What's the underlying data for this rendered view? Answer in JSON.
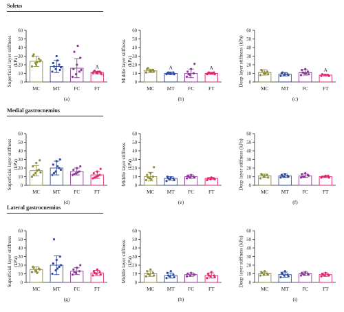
{
  "colors": {
    "MC": "#8f8c3a",
    "MT": "#2f4aa0",
    "FC": "#8b3a97",
    "FT": "#e0246e",
    "axis": "#222222"
  },
  "sections": [
    {
      "title": "Soleus"
    },
    {
      "title": "Medial gastrocnemius"
    },
    {
      "title": "Lateral gastrocnemius"
    }
  ],
  "chart_data": [
    {
      "type": "bar",
      "panel": "(a)",
      "ylabel": "Superficial layer stiffness (kPa)",
      "categories": [
        "MC",
        "MT",
        "FC",
        "FT"
      ],
      "values": [
        24,
        18,
        16,
        11
      ],
      "errors": [
        6,
        7,
        11,
        1.5
      ],
      "ylim": [
        0,
        60
      ],
      "yticks": [
        0,
        10,
        20,
        30,
        40,
        50,
        60
      ],
      "annotations": [
        {
          "category": "FT",
          "text": "A"
        }
      ],
      "points": [
        [
          18,
          22,
          27,
          30,
          20,
          24,
          32,
          23,
          25
        ],
        [
          12,
          15,
          20,
          22,
          30,
          14,
          18,
          25,
          17
        ],
        [
          6,
          9,
          12,
          15,
          20,
          28,
          35,
          42,
          14
        ],
        [
          10,
          11,
          12,
          12,
          10,
          11,
          13,
          12,
          9
        ]
      ]
    },
    {
      "type": "bar",
      "panel": "(b)",
      "ylabel": "Middle layer stiffness (kPa)",
      "categories": [
        "MC",
        "MT",
        "FC",
        "FT"
      ],
      "values": [
        13,
        10,
        10,
        10
      ],
      "errors": [
        2,
        1.5,
        5,
        1.2
      ],
      "ylim": [
        0,
        60
      ],
      "yticks": [
        0,
        10,
        20,
        30,
        40,
        50,
        60
      ],
      "annotations": [
        {
          "category": "MT",
          "text": "A"
        },
        {
          "category": "FT",
          "text": "A"
        }
      ],
      "points": [
        [
          11,
          13,
          14,
          15,
          12,
          12,
          16,
          13
        ],
        [
          9,
          10,
          11,
          10,
          10,
          9,
          11
        ],
        [
          6,
          8,
          10,
          12,
          15,
          21,
          9
        ],
        [
          9,
          10,
          11,
          10,
          10,
          9,
          11,
          10
        ]
      ]
    },
    {
      "type": "bar",
      "panel": "(c)",
      "ylabel": "Deep layer stiffness (kPa)",
      "categories": [
        "MC",
        "MT",
        "FC",
        "FT"
      ],
      "values": [
        11,
        9,
        11,
        8
      ],
      "errors": [
        3,
        2,
        3,
        1
      ],
      "ylim": [
        0,
        60
      ],
      "yticks": [
        0,
        10,
        20,
        30,
        40,
        50,
        60
      ],
      "annotations": [
        {
          "category": "FT",
          "text": "A"
        }
      ],
      "points": [
        [
          8,
          10,
          12,
          14,
          11,
          9,
          13,
          10
        ],
        [
          7,
          8,
          9,
          10,
          9,
          8,
          11
        ],
        [
          8,
          10,
          12,
          14,
          15,
          9,
          11,
          10
        ],
        [
          7,
          8,
          8,
          9,
          8,
          7
        ]
      ]
    },
    {
      "type": "bar",
      "panel": "(d)",
      "ylabel": "Superficial layer stiffness (kPa)",
      "categories": [
        "MC",
        "MT",
        "FC",
        "FT"
      ],
      "values": [
        17,
        20,
        16,
        12
      ],
      "errors": [
        6,
        8,
        4,
        4
      ],
      "ylim": [
        0,
        60
      ],
      "yticks": [
        0,
        10,
        20,
        30,
        40,
        50,
        60
      ],
      "annotations": [],
      "points": [
        [
          10,
          14,
          18,
          22,
          26,
          29,
          12,
          17,
          15
        ],
        [
          12,
          16,
          20,
          24,
          28,
          30,
          14,
          22,
          18
        ],
        [
          12,
          14,
          16,
          18,
          20,
          22,
          13,
          15
        ],
        [
          8,
          10,
          12,
          14,
          16,
          19,
          9,
          11
        ]
      ]
    },
    {
      "type": "bar",
      "panel": "(e)",
      "ylabel": "Middle layer stiffness (kPa)",
      "categories": [
        "MC",
        "MT",
        "FC",
        "FT"
      ],
      "values": [
        10,
        8,
        10,
        8
      ],
      "errors": [
        5,
        2,
        2,
        1
      ],
      "ylim": [
        0,
        60
      ],
      "yticks": [
        0,
        10,
        20,
        30,
        40,
        50,
        60
      ],
      "annotations": [],
      "points": [
        [
          6,
          8,
          10,
          12,
          14,
          21,
          9,
          7
        ],
        [
          5,
          7,
          8,
          10,
          9,
          6,
          8
        ],
        [
          8,
          9,
          10,
          11,
          12,
          9,
          10
        ],
        [
          6,
          7,
          8,
          8,
          9,
          7
        ]
      ]
    },
    {
      "type": "bar",
      "panel": "(f)",
      "ylabel": "Deep layer stiffness (kPa)",
      "categories": [
        "MC",
        "MT",
        "FC",
        "FT"
      ],
      "values": [
        11,
        11,
        11,
        10
      ],
      "errors": [
        2,
        2,
        2,
        1
      ],
      "ylim": [
        0,
        60
      ],
      "yticks": [
        0,
        10,
        20,
        30,
        40,
        50,
        60
      ],
      "annotations": [],
      "points": [
        [
          8,
          10,
          12,
          13,
          11,
          9,
          12
        ],
        [
          9,
          10,
          11,
          12,
          13,
          10,
          11
        ],
        [
          9,
          10,
          12,
          13,
          14,
          11,
          10
        ],
        [
          9,
          10,
          11,
          10,
          11,
          9
        ]
      ]
    },
    {
      "type": "bar",
      "panel": "(g)",
      "ylabel": "Superficial layer stiffness (kPa)",
      "categories": [
        "MC",
        "MT",
        "FC",
        "FT"
      ],
      "values": [
        15,
        20,
        13,
        11
      ],
      "errors": [
        3,
        11,
        4,
        3
      ],
      "ylim": [
        0,
        60
      ],
      "yticks": [
        0,
        10,
        20,
        30,
        40,
        50,
        60
      ],
      "annotations": [],
      "points": [
        [
          12,
          14,
          16,
          18,
          13,
          15,
          17,
          11
        ],
        [
          10,
          14,
          18,
          22,
          26,
          30,
          50,
          16,
          20
        ],
        [
          9,
          11,
          13,
          15,
          17,
          20,
          12
        ],
        [
          8,
          10,
          12,
          13,
          15,
          9,
          11
        ]
      ]
    },
    {
      "type": "bar",
      "panel": "(h)",
      "ylabel": "Middle layer stiffness (kPa)",
      "categories": [
        "MC",
        "MT",
        "FC",
        "FT"
      ],
      "values": [
        10,
        8,
        9,
        8
      ],
      "errors": [
        3,
        3,
        2,
        3
      ],
      "ylim": [
        0,
        60
      ],
      "yticks": [
        0,
        10,
        20,
        30,
        40,
        50,
        60
      ],
      "annotations": [],
      "points": [
        [
          7,
          9,
          11,
          13,
          15,
          8,
          10
        ],
        [
          5,
          7,
          9,
          11,
          13,
          6,
          8
        ],
        [
          7,
          8,
          9,
          10,
          11,
          9
        ],
        [
          5,
          7,
          8,
          10,
          12,
          6,
          8
        ]
      ]
    },
    {
      "type": "bar",
      "panel": "(i)",
      "ylabel": "Deep layer stiffness (kPa)",
      "categories": [
        "MC",
        "MT",
        "FC",
        "FT"
      ],
      "values": [
        10,
        9,
        10,
        9
      ],
      "errors": [
        2,
        3,
        2,
        2
      ],
      "ylim": [
        0,
        60
      ],
      "yticks": [
        0,
        10,
        20,
        30,
        40,
        50,
        60
      ],
      "annotations": [],
      "points": [
        [
          8,
          9,
          10,
          12,
          13,
          9,
          11
        ],
        [
          6,
          8,
          9,
          11,
          13,
          7,
          10
        ],
        [
          8,
          9,
          10,
          11,
          12,
          9,
          10
        ],
        [
          7,
          8,
          9,
          10,
          11,
          8,
          9
        ]
      ]
    }
  ]
}
